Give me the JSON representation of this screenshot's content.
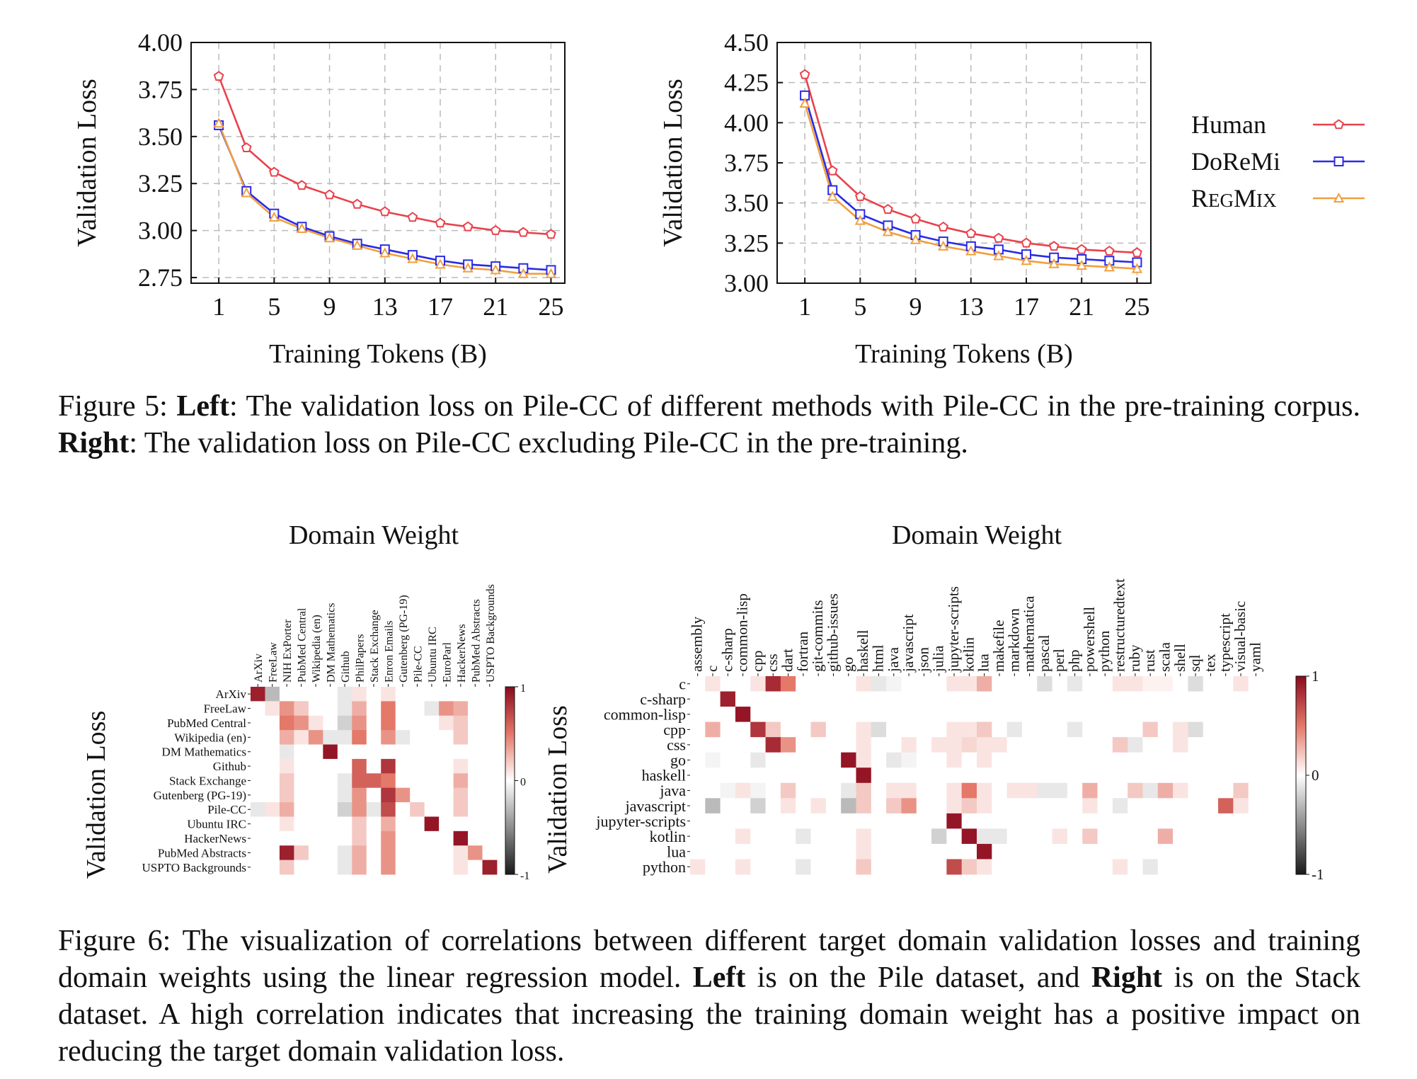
{
  "figure5": {
    "caption": {
      "prefix": "Figure 5: ",
      "left_bold": "Left",
      "left_text": ": The validation loss on Pile-CC of different methods with Pile-CC in the pre-training corpus. ",
      "right_bold": "Right",
      "right_text": ": The validation loss on Pile-CC excluding Pile-CC in the pre-training."
    },
    "legend": [
      "Human",
      "DoReMi",
      "RegMix"
    ]
  },
  "figure6": {
    "caption": {
      "text1": "Figure 6: The visualization of correlations between different target domain validation losses and training domain weights using the linear regression model. ",
      "left_bold": "Left",
      "text2": " is on the Pile dataset, and ",
      "right_bold": "Right",
      "text3": " is on the Stack dataset. A high correlation indicates that increasing the training domain weight has a positive impact on reducing the target domain validation loss."
    }
  },
  "colors": {
    "human": "#e8424c",
    "doremi": "#2a2ae6",
    "regmix": "#f0a040",
    "hot": "#8b0a1e",
    "cold": "#1a1a1a"
  },
  "chart_data": [
    {
      "type": "line",
      "xlabel": "Training Tokens (B)",
      "ylabel": "Validation  Loss",
      "xticks": [
        1,
        5,
        9,
        13,
        17,
        21,
        25
      ],
      "xlim": [
        -1,
        26
      ],
      "yticks": [
        2.75,
        3.0,
        3.25,
        3.5,
        3.75,
        4.0
      ],
      "ytick_labels": [
        "2.75",
        "3.00",
        "3.25",
        "3.50",
        "3.75",
        "4.00"
      ],
      "ylim": [
        2.72,
        4.0
      ],
      "grid": true,
      "x": [
        1,
        3,
        5,
        7,
        9,
        11,
        13,
        15,
        17,
        19,
        21,
        23,
        25
      ],
      "series": [
        {
          "name": "Human",
          "values": [
            3.82,
            3.44,
            3.31,
            3.24,
            3.19,
            3.14,
            3.1,
            3.07,
            3.04,
            3.02,
            3.0,
            2.99,
            2.98
          ]
        },
        {
          "name": "DoReMi",
          "values": [
            3.56,
            3.21,
            3.09,
            3.02,
            2.97,
            2.93,
            2.9,
            2.87,
            2.84,
            2.82,
            2.81,
            2.8,
            2.79
          ]
        },
        {
          "name": "RegMix",
          "values": [
            3.57,
            3.2,
            3.07,
            3.01,
            2.96,
            2.92,
            2.88,
            2.85,
            2.82,
            2.8,
            2.79,
            2.77,
            2.77
          ]
        }
      ]
    },
    {
      "type": "line",
      "xlabel": "Training Tokens (B)",
      "ylabel": "Validation  Loss",
      "xticks": [
        1,
        5,
        9,
        13,
        17,
        21,
        25
      ],
      "xlim": [
        -1,
        26
      ],
      "yticks": [
        3.0,
        3.25,
        3.5,
        3.75,
        4.0,
        4.25,
        4.5
      ],
      "ytick_labels": [
        "3.00",
        "3.25",
        "3.50",
        "3.75",
        "4.00",
        "4.25",
        "4.50"
      ],
      "ylim": [
        3.0,
        4.5
      ],
      "grid": true,
      "legend_position": "right",
      "x": [
        1,
        3,
        5,
        7,
        9,
        11,
        13,
        15,
        17,
        19,
        21,
        23,
        25
      ],
      "series": [
        {
          "name": "Human",
          "values": [
            4.3,
            3.7,
            3.54,
            3.46,
            3.4,
            3.35,
            3.31,
            3.28,
            3.25,
            3.23,
            3.21,
            3.2,
            3.19
          ]
        },
        {
          "name": "DoReMi",
          "values": [
            4.17,
            3.58,
            3.43,
            3.36,
            3.3,
            3.26,
            3.23,
            3.21,
            3.18,
            3.16,
            3.15,
            3.14,
            3.13
          ]
        },
        {
          "name": "RegMix",
          "values": [
            4.12,
            3.54,
            3.39,
            3.32,
            3.27,
            3.23,
            3.2,
            3.17,
            3.14,
            3.12,
            3.11,
            3.1,
            3.09
          ]
        }
      ]
    },
    {
      "type": "heatmap",
      "title": "Domain Weight",
      "ylabel": "Validation Loss",
      "colorbar_ticks": [
        "1",
        "0",
        "-1"
      ],
      "x_categories": [
        "ArXiv",
        "FreeLaw",
        "NIH ExPorter",
        "PubMed Central",
        "Wikipedia (en)",
        "DM Mathematics",
        "Github",
        "PhilPapers",
        "Stack Exchange",
        "Enron Emails",
        "Gutenberg (PG-19)",
        "Pile-CC",
        "Ubuntu IRC",
        "EuroParl",
        "HackerNews",
        "PubMed Abstracts",
        "USPTO Backgrounds"
      ],
      "y_categories": [
        "ArXiv",
        "FreeLaw",
        "PubMed Central",
        "Wikipedia (en)",
        "DM Mathematics",
        "Github",
        "Stack Exchange",
        "Gutenberg (PG-19)",
        "Pile-CC",
        "Ubuntu IRC",
        "HackerNews",
        "PubMed Abstracts",
        "USPTO Backgrounds"
      ],
      "values": [
        [
          0.9,
          -0.3,
          0,
          0,
          0,
          0,
          -0.1,
          0.1,
          0,
          0.1,
          0,
          0,
          0,
          0,
          0,
          0,
          0
        ],
        [
          0,
          0.1,
          0.4,
          0.2,
          0,
          0,
          -0.1,
          0.3,
          0,
          0.5,
          0,
          0,
          -0.1,
          0.4,
          0.3,
          0,
          0
        ],
        [
          0,
          0,
          0.5,
          0.4,
          0.1,
          0,
          -0.2,
          0.4,
          0,
          0.5,
          0,
          0,
          0,
          0.1,
          0.2,
          0,
          0
        ],
        [
          0,
          0,
          0.3,
          0.1,
          0.4,
          -0.1,
          -0.1,
          0.5,
          0,
          0.4,
          -0.1,
          0,
          0,
          0,
          0.2,
          0,
          0
        ],
        [
          0,
          0,
          -0.1,
          0,
          0,
          0.95,
          0,
          0,
          0,
          0,
          0,
          0,
          0,
          0,
          0,
          0,
          0
        ],
        [
          0,
          0,
          0.1,
          0,
          0,
          0,
          0,
          0.6,
          0,
          0.8,
          0,
          0,
          0,
          0,
          0.1,
          0,
          0
        ],
        [
          0,
          0,
          0.2,
          0,
          0,
          0,
          -0.1,
          0.6,
          0.6,
          0.5,
          0,
          0,
          0,
          0,
          0.3,
          0,
          0
        ],
        [
          0,
          0,
          0.2,
          0,
          0,
          0,
          -0.1,
          0.4,
          0,
          0.8,
          0.4,
          0,
          0,
          0,
          0.2,
          0,
          0
        ],
        [
          -0.1,
          0.1,
          0.3,
          0,
          0,
          0,
          -0.2,
          0.4,
          -0.1,
          0.7,
          0,
          0.2,
          0,
          0,
          0.2,
          0,
          0
        ],
        [
          0,
          0,
          0.1,
          0,
          0,
          0,
          0,
          0.2,
          0,
          0.3,
          0,
          0,
          0.95,
          0,
          0,
          0,
          0
        ],
        [
          0,
          0,
          0,
          0,
          0,
          0,
          0,
          0.2,
          0,
          0.4,
          0,
          0,
          0,
          0,
          0.95,
          0,
          0
        ],
        [
          0,
          0,
          0.9,
          0.2,
          0,
          0,
          -0.1,
          0.3,
          0,
          0.4,
          0,
          0,
          0,
          0,
          0.1,
          0.4,
          0
        ],
        [
          0,
          0,
          0.2,
          0,
          0,
          0,
          -0.1,
          0.3,
          0,
          0.4,
          0,
          0,
          0,
          0,
          0.1,
          0,
          0.9
        ]
      ]
    },
    {
      "type": "heatmap",
      "title": "Domain Weight",
      "ylabel": "Validation Loss",
      "colorbar_ticks": [
        "1",
        "0",
        "-1"
      ],
      "x_categories": [
        "assembly",
        "c",
        "c-sharp",
        "common-lisp",
        "cpp",
        "css",
        "dart",
        "fortran",
        "git-commits",
        "github-issues",
        "go",
        "haskell",
        "html",
        "java",
        "javascript",
        "json",
        "julia",
        "jupyter-scripts",
        "kotlin",
        "lua",
        "makefile",
        "markdown",
        "mathematica",
        "pascal",
        "perl",
        "php",
        "powershell",
        "python",
        "restructuredtext",
        "ruby",
        "rust",
        "scala",
        "shell",
        "sql",
        "tex",
        "typescript",
        "visual-basic",
        "yaml"
      ],
      "y_categories": [
        "c",
        "c-sharp",
        "common-lisp",
        "cpp",
        "css",
        "go",
        "haskell",
        "java",
        "javascript",
        "jupyter-scripts",
        "kotlin",
        "lua",
        "python"
      ],
      "values": [
        [
          0,
          0.1,
          0,
          0,
          0.1,
          0.85,
          0.5,
          0,
          0,
          0,
          0,
          0.1,
          -0.1,
          -0.05,
          0,
          0,
          0,
          0.1,
          0.1,
          0.3,
          0,
          0,
          0,
          -0.15,
          0,
          -0.1,
          0,
          0,
          0.1,
          0.1,
          0.05,
          0.05,
          0,
          -0.15,
          0,
          0,
          0.1,
          0
        ],
        [
          0,
          0,
          0.9,
          0,
          0,
          0,
          0,
          0,
          0,
          0,
          0,
          0,
          0,
          0,
          0,
          0,
          0,
          0,
          0,
          0,
          0,
          0,
          0,
          0,
          0,
          0,
          0,
          0,
          0,
          0,
          0,
          0,
          0,
          0,
          0,
          0,
          0,
          0
        ],
        [
          0,
          0,
          0,
          0.95,
          0,
          0,
          0,
          0,
          0,
          0,
          0,
          0,
          0,
          0,
          0,
          0,
          0,
          0,
          0,
          0,
          0,
          0,
          0,
          0,
          0,
          0,
          0,
          0,
          0,
          0,
          0,
          0,
          0,
          0,
          0,
          0,
          0,
          0
        ],
        [
          0,
          0.3,
          0,
          0,
          0.8,
          0.2,
          0,
          0,
          0.2,
          0,
          0,
          0.1,
          -0.15,
          0,
          0,
          0,
          0,
          0.1,
          0.1,
          0.2,
          0,
          -0.1,
          0,
          0,
          0,
          -0.1,
          0,
          0,
          0,
          0,
          0.2,
          0,
          0.1,
          -0.15,
          0,
          0,
          0,
          0
        ],
        [
          0,
          0,
          0,
          0,
          0,
          0.85,
          0.4,
          0,
          0,
          0,
          0,
          0.1,
          0,
          0,
          0.1,
          0,
          0.1,
          0.1,
          0.15,
          0.1,
          0.1,
          0,
          0,
          0,
          0,
          0,
          0,
          0,
          0.2,
          -0.1,
          0,
          0,
          0.1,
          0,
          0,
          0,
          0,
          0
        ],
        [
          0,
          -0.05,
          0,
          0,
          -0.1,
          0,
          0,
          0,
          0,
          0,
          0.95,
          0.1,
          0,
          -0.1,
          -0.05,
          0,
          0,
          0.1,
          0,
          0.1,
          0,
          0,
          0,
          0,
          0,
          0,
          0,
          0,
          0,
          0,
          0,
          0,
          0,
          0,
          0,
          0,
          0,
          0
        ],
        [
          0,
          0,
          0,
          0,
          0,
          0,
          0,
          0,
          0,
          0,
          0,
          0.95,
          0,
          0,
          0,
          0,
          0,
          0,
          0,
          0,
          0,
          0,
          0,
          0,
          0,
          0,
          0,
          0,
          0,
          0,
          0,
          0,
          0,
          0,
          0,
          0,
          0,
          0
        ],
        [
          0,
          0,
          -0.05,
          0.1,
          -0.05,
          0,
          0.2,
          0,
          0,
          0,
          -0.1,
          0.2,
          0,
          0.1,
          0.1,
          0,
          0,
          0.1,
          0.5,
          0.1,
          0,
          0.1,
          0.1,
          -0.1,
          -0.1,
          0,
          0.3,
          0,
          0,
          0.2,
          -0.1,
          0.3,
          0.1,
          0,
          0,
          0,
          0.2,
          0
        ],
        [
          0,
          -0.3,
          0,
          0,
          -0.2,
          0,
          0.1,
          0,
          0.1,
          0,
          -0.3,
          0.2,
          0,
          0.2,
          0.4,
          0,
          0,
          0.1,
          0.2,
          0.1,
          0,
          0,
          0,
          0,
          0,
          0,
          0.1,
          0,
          -0.1,
          0,
          0,
          0,
          0,
          0,
          0,
          0.6,
          0.1,
          0
        ],
        [
          0,
          0,
          0,
          0,
          0,
          0,
          0,
          0,
          0,
          0,
          0,
          0,
          0,
          0,
          0,
          0,
          0,
          0.95,
          0,
          0,
          0,
          0,
          0,
          0,
          0,
          0,
          0,
          0,
          0,
          0,
          0,
          0,
          0,
          0,
          0,
          0,
          0,
          0
        ],
        [
          0,
          0,
          0,
          0.1,
          0,
          0,
          0,
          -0.1,
          0,
          0,
          0,
          0.1,
          0,
          0,
          0,
          0,
          -0.2,
          0,
          0.95,
          -0.1,
          -0.1,
          0,
          0,
          0,
          0.1,
          0,
          0.2,
          0,
          0,
          0,
          0,
          0.3,
          0,
          0,
          0,
          0,
          0,
          0
        ],
        [
          0,
          0,
          0,
          0,
          0,
          0,
          0,
          0,
          0,
          0,
          0,
          0.1,
          0,
          0,
          0,
          0,
          0,
          0,
          0,
          0.95,
          0,
          0,
          0,
          0,
          0,
          0,
          0,
          0,
          0,
          0,
          0,
          0,
          0,
          0,
          0,
          0,
          0,
          0
        ],
        [
          0.1,
          0,
          0,
          0.1,
          0,
          0,
          0,
          -0.1,
          0,
          0,
          0,
          0.2,
          0,
          0,
          0,
          0,
          0,
          0.7,
          0.2,
          0.1,
          0,
          0,
          0,
          0,
          0,
          0,
          0,
          0,
          0.1,
          0,
          -0.1,
          0,
          0,
          0,
          0,
          0,
          0,
          0
        ]
      ]
    }
  ]
}
